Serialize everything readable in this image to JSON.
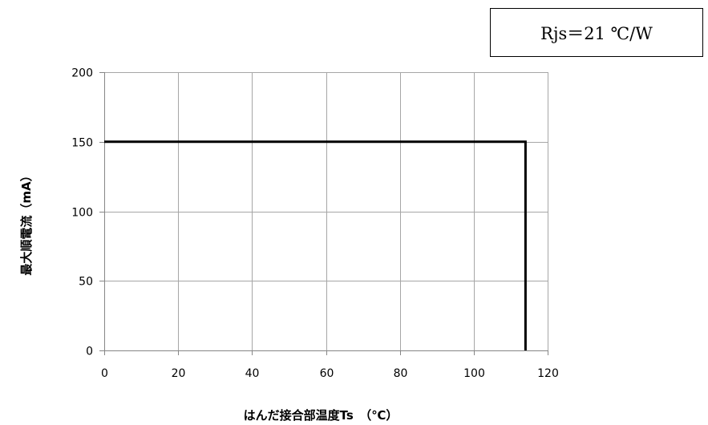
{
  "chart_data": {
    "type": "line",
    "title": "",
    "xlabel": "はんだ接合部温度Ts　（℃）",
    "ylabel": "最大順電流（mA）",
    "xlim": [
      0,
      120
    ],
    "ylim": [
      0,
      200
    ],
    "xticks": [
      0,
      20,
      40,
      60,
      80,
      100,
      120
    ],
    "yticks": [
      0,
      50,
      100,
      150,
      200
    ],
    "grid": true,
    "series": [
      {
        "x": [
          0,
          114,
          114
        ],
        "y": [
          150,
          150,
          0
        ]
      }
    ],
    "colors": {
      "line": "#000000",
      "grid": "#a6a6a6",
      "axis": "#868686"
    },
    "annotation": "Rjs＝21 ℃/W"
  }
}
